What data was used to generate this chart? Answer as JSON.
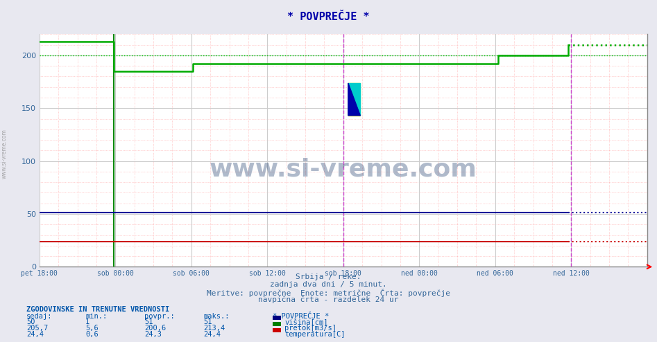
{
  "title": "* POVPREČJE *",
  "bg_color": "#e8e8f0",
  "plot_bg_color": "#ffffff",
  "grid_color_major": "#cccccc",
  "x_labels": [
    "pet 18:00",
    "sob 00:00",
    "sob 06:00",
    "sob 12:00",
    "sob 18:00",
    "ned 00:00",
    "ned 06:00",
    "ned 12:00"
  ],
  "x_ticks_norm": [
    0.0,
    0.125,
    0.25,
    0.375,
    0.5,
    0.625,
    0.75,
    0.875
  ],
  "ylim": [
    0,
    220
  ],
  "yticks": [
    0,
    50,
    100,
    150,
    200
  ],
  "tick_color": "#336699",
  "subtitle1": "Srbija / reke.",
  "subtitle2": "zadnja dva dni / 5 minut.",
  "subtitle3": "Meritve: povprečne  Enote: metrične  Črta: povprečje",
  "subtitle4": "navpična črta - razdelek 24 ur",
  "subtitle_color": "#336699",
  "watermark": "www.si-vreme.com",
  "watermark_color": "#1a3a6b",
  "watermark_alpha": 0.35,
  "stat_header": "ZGODOVINSKE IN TRENUTNE VREDNOSTI",
  "stat_color": "#0055aa",
  "stat_cols": [
    "sedaj:",
    "min.:",
    "povpr.:",
    "maks.:"
  ],
  "stat_rows": [
    [
      "50",
      "1",
      "51",
      "51"
    ],
    [
      "205,7",
      "5,6",
      "200,6",
      "213,4"
    ],
    [
      "24,4",
      "0,6",
      "24,3",
      "24,4"
    ]
  ],
  "legend_labels": [
    "višina[cm]",
    "pretok[m3/s]",
    "temperatura[C]"
  ],
  "legend_colors": [
    "#000080",
    "#008000",
    "#cc0000"
  ],
  "side_watermark": "www.si-vreme.com"
}
